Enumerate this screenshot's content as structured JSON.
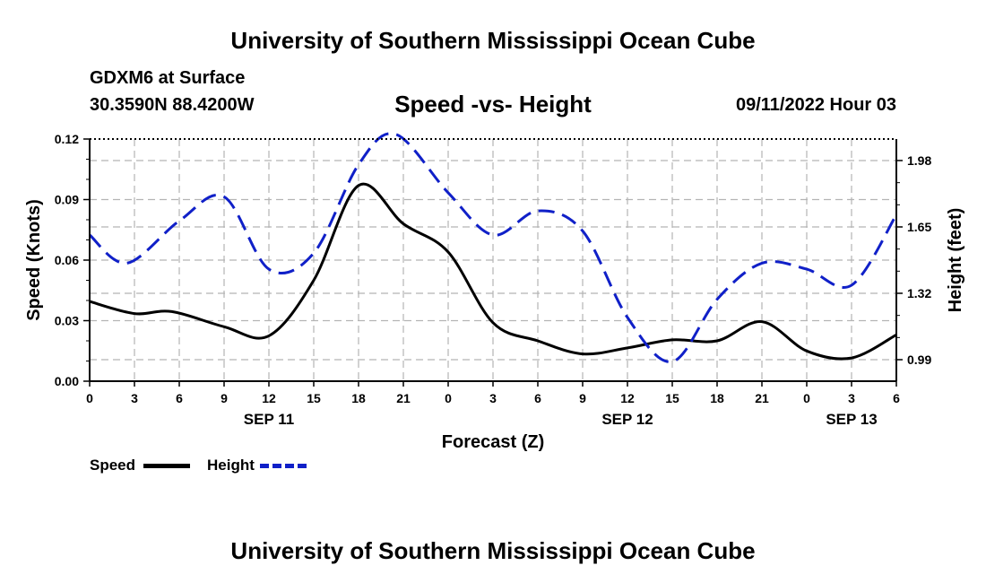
{
  "header": {
    "title": "University of Southern Mississippi Ocean Cube",
    "station": "GDXM6 at Surface",
    "coords": "30.3590N  88.4200W",
    "chart_title": "Speed -vs- Height",
    "datetime": "09/11/2022 Hour 03"
  },
  "footer": {
    "title": "University of Southern Mississippi Ocean Cube"
  },
  "legend": {
    "speed_label": "Speed",
    "height_label": "Height"
  },
  "colors": {
    "speed": "#000000",
    "height": "#1020c8",
    "grid": "#b4b4b4"
  },
  "chart_data": {
    "type": "line",
    "title": "Speed -vs- Height",
    "xlabel": "Forecast (Z)",
    "ylabel": "Speed (Knots)",
    "y2label": "Height (feet)",
    "x_hours": [
      0,
      3,
      6,
      9,
      12,
      15,
      18,
      21,
      24,
      27,
      30,
      33,
      36,
      39,
      42,
      45,
      48,
      51,
      54
    ],
    "x_tick_labels": [
      "0",
      "3",
      "6",
      "9",
      "12",
      "15",
      "18",
      "21",
      "0",
      "3",
      "6",
      "9",
      "12",
      "15",
      "18",
      "21",
      "0",
      "3",
      "6"
    ],
    "date_labels": [
      {
        "hour": 12,
        "label": "SEP 11"
      },
      {
        "hour": 36,
        "label": "SEP 12"
      },
      {
        "hour": 51,
        "label": "SEP 13"
      }
    ],
    "ylim": [
      0,
      0.12
    ],
    "y_ticks": [
      0.0,
      0.03,
      0.06,
      0.09,
      0.12
    ],
    "y_tick_labels": [
      "0.00",
      "0.03",
      "0.06",
      "0.09",
      "0.12"
    ],
    "y2lim": [
      0.883,
      2.087
    ],
    "y2_ticks": [
      0.99,
      1.32,
      1.65,
      1.98
    ],
    "y2_tick_labels": [
      "0.99",
      "1.32",
      "1.65",
      "1.98"
    ],
    "series": [
      {
        "name": "Speed",
        "axis": "left",
        "x": [
          0,
          3,
          5.5,
          9,
          12,
          15,
          18,
          21,
          24,
          27,
          30,
          33,
          36,
          39,
          42,
          45,
          48,
          51,
          54
        ],
        "values": [
          0.0395,
          0.0335,
          0.0345,
          0.027,
          0.0225,
          0.05,
          0.097,
          0.078,
          0.064,
          0.029,
          0.02,
          0.0135,
          0.0165,
          0.0205,
          0.02,
          0.0295,
          0.015,
          0.0115,
          0.023
        ]
      },
      {
        "name": "Height",
        "axis": "right",
        "x": [
          0,
          2.5,
          6,
          9,
          12,
          15,
          18,
          20.5,
          24,
          27,
          30,
          33,
          36,
          39,
          42,
          45,
          48,
          51,
          54
        ],
        "values": [
          1.61,
          1.47,
          1.68,
          1.8,
          1.44,
          1.52,
          1.96,
          2.11,
          1.82,
          1.61,
          1.73,
          1.63,
          1.2,
          0.98,
          1.29,
          1.47,
          1.44,
          1.36,
          1.71
        ]
      }
    ]
  }
}
